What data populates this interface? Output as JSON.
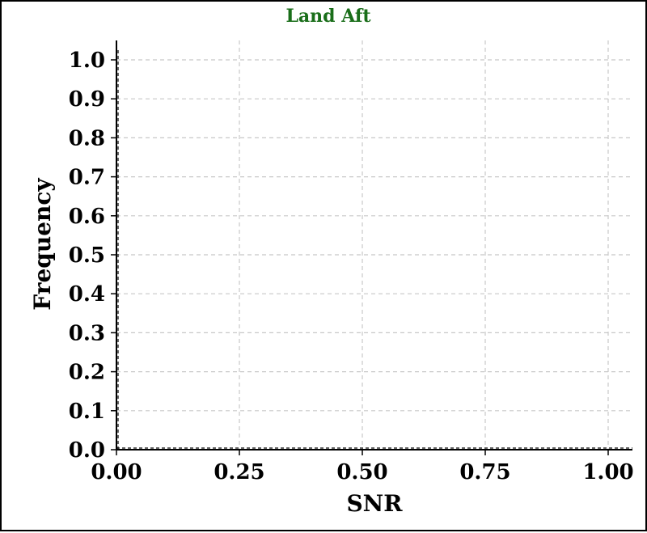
{
  "chart_data": {
    "type": "bar",
    "title": "Land Aft",
    "title_color": "#1a6e1a",
    "xlabel": "SNR",
    "ylabel": "Frequency",
    "xlim": [
      0.0,
      1.0
    ],
    "ylim": [
      0.0,
      1.0
    ],
    "x_ticks": [
      "0.00",
      "0.25",
      "0.50",
      "0.75",
      "1.00"
    ],
    "y_ticks": [
      "0.0",
      "0.1",
      "0.2",
      "0.3",
      "0.4",
      "0.5",
      "0.6",
      "0.7",
      "0.8",
      "0.9",
      "1.0"
    ],
    "grid": true,
    "grid_style": "dashed",
    "grid_color": "#c8c8c8",
    "values": []
  }
}
